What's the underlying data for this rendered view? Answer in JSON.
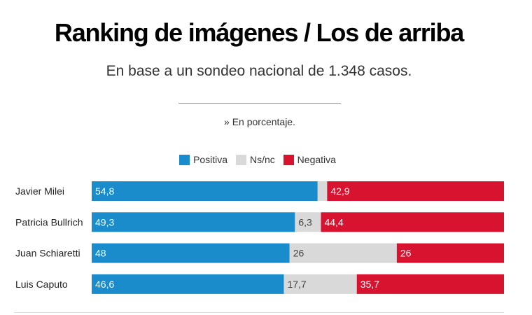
{
  "chart_data": {
    "type": "bar",
    "stacked": true,
    "orientation": "horizontal",
    "title": "Ranking de imágenes / Los de arriba",
    "subtitle": "En base a un sondeo nacional de 1.348 casos.",
    "note": "» En porcentaje.",
    "categories": [
      "Javier Milei",
      "Patricia Bullrich",
      "Juan Schiaretti",
      "Luis Caputo"
    ],
    "series": [
      {
        "name": "Positiva",
        "color": "#1a8ccc",
        "label_color": "#ffffff",
        "values": [
          54.8,
          49.3,
          48,
          46.6
        ],
        "labels": [
          "54,8",
          "49,3",
          "48",
          "46,6"
        ]
      },
      {
        "name": "Ns/nc",
        "color": "#d9d9d9",
        "label_color": "#444444",
        "values": [
          2.3,
          6.3,
          26,
          17.7
        ],
        "labels": [
          "",
          "6,3",
          "26",
          "17,7"
        ]
      },
      {
        "name": "Negativa",
        "color": "#d7132f",
        "label_color": "#ffffff",
        "values": [
          42.9,
          44.4,
          26,
          35.7
        ],
        "labels": [
          "42,9",
          "44,4",
          "26",
          "35,7"
        ]
      }
    ],
    "legend_position": "top-center",
    "xlim": [
      0,
      100
    ]
  }
}
